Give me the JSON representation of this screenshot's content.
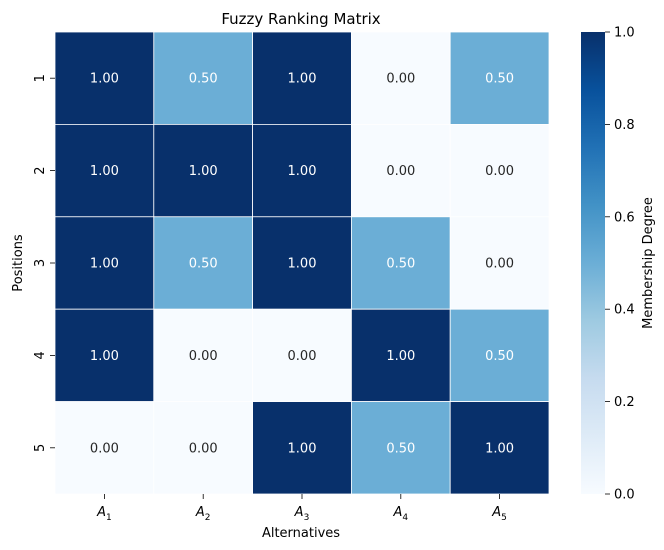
{
  "chart_data": {
    "type": "heatmap",
    "title": "Fuzzy Ranking Matrix",
    "xlabel": "Alternatives",
    "ylabel": "Positions",
    "x_categories": [
      {
        "base": "A",
        "sub": "1"
      },
      {
        "base": "A",
        "sub": "2"
      },
      {
        "base": "A",
        "sub": "3"
      },
      {
        "base": "A",
        "sub": "4"
      },
      {
        "base": "A",
        "sub": "5"
      }
    ],
    "y_categories": [
      "1",
      "2",
      "3",
      "4",
      "5"
    ],
    "values": [
      [
        1.0,
        0.5,
        1.0,
        0.0,
        0.5
      ],
      [
        1.0,
        1.0,
        1.0,
        0.0,
        0.0
      ],
      [
        1.0,
        0.5,
        1.0,
        0.5,
        0.0
      ],
      [
        1.0,
        0.0,
        0.0,
        1.0,
        0.5
      ],
      [
        0.0,
        0.0,
        1.0,
        0.5,
        1.0
      ]
    ],
    "value_format_decimals": 2,
    "colormap": "Blues",
    "colorbar": {
      "label": "Membership Degree",
      "range": [
        0.0,
        1.0
      ],
      "ticks": [
        "0.0",
        "0.2",
        "0.4",
        "0.6",
        "0.8",
        "1.0"
      ]
    },
    "grid": false,
    "cell_border_color": "#ffffff"
  }
}
